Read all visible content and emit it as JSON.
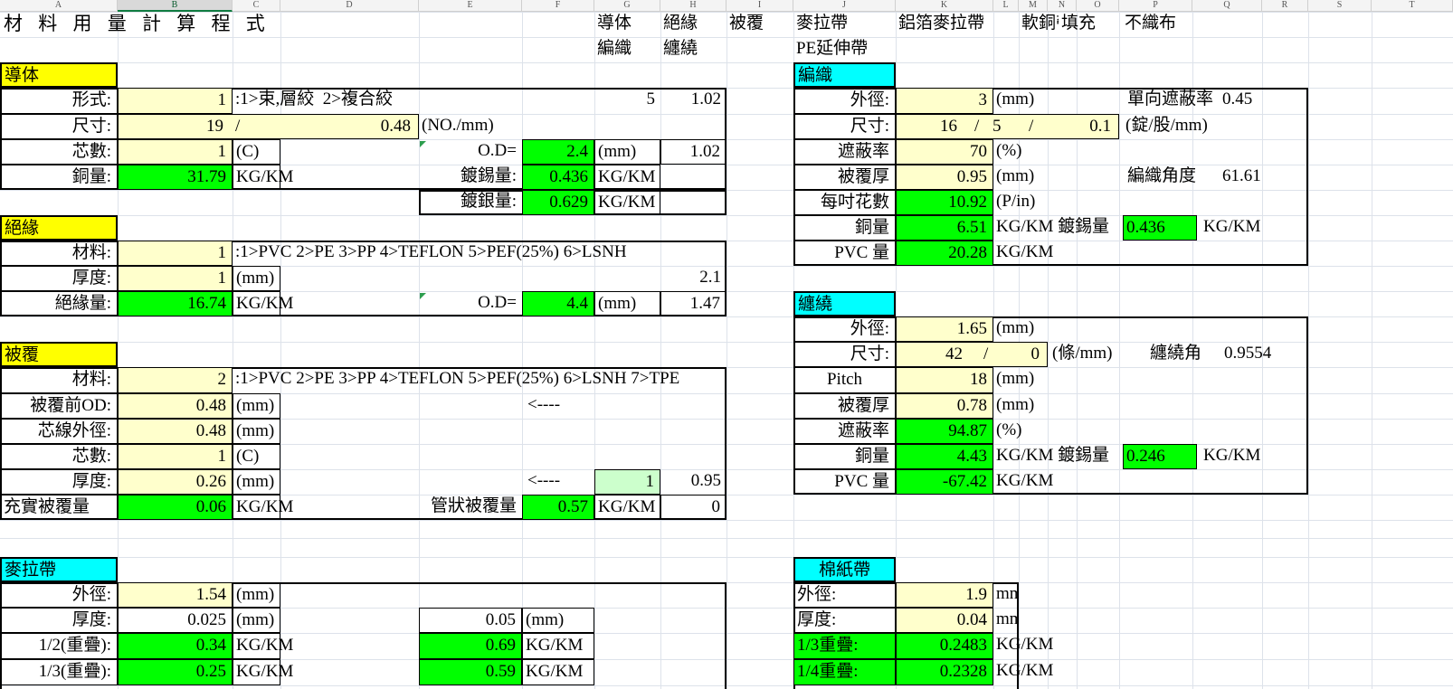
{
  "app": {
    "title": "材 料 用 量 計 算 程 式",
    "column_letters": [
      "A",
      "B",
      "C",
      "D",
      "E",
      "F",
      "G",
      "H",
      "I",
      "J",
      "K",
      "L",
      "M",
      "N",
      "O",
      "P",
      "Q",
      "R",
      "S",
      "T"
    ],
    "selected_column": "B"
  },
  "colors": {
    "section_yellow": "#FFFF00",
    "section_cyan": "#00FFFF",
    "input_yellow": "#FFFFCC",
    "result_green": "#00FF00",
    "pale_green": "#CCFFCC",
    "selected_column_accent": "#107C41"
  },
  "top_row": {
    "conductor": "導体",
    "insulation": "絕緣",
    "jacket": "被覆",
    "mylar": "麥拉帶",
    "al_mylar": "鋁箔麥拉帶",
    "soft_copper": "軟銅帶",
    "filler": "填充",
    "nonwoven": "不織布",
    "braid": "編織",
    "wrap": "纏繞",
    "pe_tape": "PE延伸帶"
  },
  "conductor": {
    "header": "導体",
    "form": {
      "label": "形式:",
      "value": "1",
      "options": ":1>束,層絞  2>複合絞",
      "n1": "5",
      "n2": "1.02"
    },
    "size": {
      "label": "尺寸:",
      "count": "19",
      "sep": "/",
      "dia": "0.48",
      "unit": "(NO./mm)"
    },
    "cores": {
      "label": "芯數:",
      "value": "1",
      "unit": "(C)"
    },
    "od": {
      "label": "O.D=",
      "value": "2.4",
      "unit": "(mm)",
      "ratio": "1.02"
    },
    "copper": {
      "label": "銅量:",
      "value": "31.79",
      "unit": "KG/KM"
    },
    "tin": {
      "label": "鍍錫量:",
      "value": "0.436",
      "unit": "KG/KM"
    },
    "silver": {
      "label": "鍍銀量:",
      "value": "0.629",
      "unit": "KG/KM"
    }
  },
  "insulation": {
    "header": "絕緣",
    "material": {
      "label": "材料:",
      "value": "1",
      "options": ":1>PVC 2>PE 3>PP 4>TEFLON 5>PEF(25%) 6>LSNH"
    },
    "thickness": {
      "label": "厚度:",
      "value": "1",
      "unit": "(mm)",
      "extra": "2.1"
    },
    "amount": {
      "label": "絕緣量:",
      "value": "16.74",
      "unit": "KG/KM"
    },
    "od": {
      "label": "O.D=",
      "value": "4.4",
      "unit": "(mm)",
      "ratio": "1.47"
    }
  },
  "jacket": {
    "header": "被覆",
    "material": {
      "label": "材料:",
      "value": "2",
      "options": ":1>PVC 2>PE 3>PP 4>TEFLON 5>PEF(25%) 6>LSNH 7>TPE"
    },
    "pre_od": {
      "label": "被覆前OD:",
      "value": "0.48",
      "unit": "(mm)",
      "arrow": "<----"
    },
    "core_od": {
      "label": "芯線外徑:",
      "value": "0.48",
      "unit": "(mm)"
    },
    "cores": {
      "label": "芯數:",
      "value": "1",
      "unit": "(C)"
    },
    "thickness": {
      "label": "厚度:",
      "value": "0.26",
      "unit": "(mm)",
      "arrow": "<----",
      "factor": "1",
      "ratio": "0.95"
    },
    "solid": {
      "label": "充實被覆量",
      "value": "0.06",
      "unit": "KG/KM"
    },
    "tubular": {
      "label": "管狀被覆量",
      "value": "0.57",
      "unit": "KG/KM",
      "extra": "0"
    }
  },
  "mylar": {
    "header": "麥拉帶",
    "od": {
      "label": "外徑:",
      "value": "1.54",
      "unit": "(mm)"
    },
    "thickness": {
      "label": "厚度:",
      "value": "0.025",
      "unit": "(mm)",
      "value2": "0.05",
      "unit2": "(mm)"
    },
    "half_overlap": {
      "label": "1/2(重疊):",
      "value": "0.34",
      "unit": "KG/KM",
      "value2": "0.69",
      "unit2": "KG/KM"
    },
    "third_overlap": {
      "label": "1/3(重疊):",
      "value": "0.25",
      "unit": "KG/KM",
      "value2": "0.59",
      "unit2": "KG/KM"
    }
  },
  "braid": {
    "header": "編織",
    "od": {
      "label": "外徑:",
      "value": "3",
      "unit": "(mm)",
      "shield_label": "單向遮蔽率",
      "shield_value": "0.45"
    },
    "size": {
      "label": "尺寸:",
      "p1": "16",
      "s1": "/",
      "p2": "5",
      "s2": "/",
      "p3": "0.1",
      "unit": "(錠/股/mm)"
    },
    "coverage": {
      "label": "遮蔽率",
      "value": "70",
      "unit": "(%)"
    },
    "jacket_thk": {
      "label": "被覆厚",
      "value": "0.95",
      "unit": "(mm)",
      "angle_label": "編織角度",
      "angle_value": "61.61"
    },
    "picks": {
      "label": "每吋花數",
      "value": "10.92",
      "unit": "(P/in)"
    },
    "copper": {
      "label": "銅量",
      "value": "6.51",
      "unit": "KG/KM",
      "tin_label": "鍍錫量",
      "tin_value": "0.436",
      "tin_unit": "KG/KM"
    },
    "pvc": {
      "label": "PVC 量",
      "value": "20.28",
      "unit": "KG/KM"
    }
  },
  "wrap": {
    "header": "纏繞",
    "od": {
      "label": "外徑:",
      "value": "1.65",
      "unit": "(mm)"
    },
    "size": {
      "label": "尺寸:",
      "p1": "42",
      "s1": "/",
      "p2": "0",
      "unit": "(條/mm)",
      "angle_label": "纏繞角",
      "angle_value": "0.9554"
    },
    "pitch": {
      "label": "Pitch",
      "value": "18",
      "unit": "(mm)"
    },
    "jacket_thk": {
      "label": "被覆厚",
      "value": "0.78",
      "unit": "(mm)"
    },
    "coverage": {
      "label": "遮蔽率",
      "value": "94.87",
      "unit": "(%)"
    },
    "copper": {
      "label": "銅量",
      "value": "4.43",
      "unit": "KG/KM",
      "tin_label": "鍍錫量",
      "tin_value": "0.246",
      "tin_unit": "KG/KM"
    },
    "pvc": {
      "label": "PVC 量",
      "value": "-67.42",
      "unit": "KG/KM"
    }
  },
  "cotton": {
    "header": "棉紙帶",
    "od": {
      "label": "外徑:",
      "value": "1.9",
      "unit": "mm"
    },
    "thickness": {
      "label": "厚度:",
      "value": "0.04",
      "unit": "mm"
    },
    "third": {
      "label": "1/3重疊:",
      "value": "0.2483",
      "unit": "KG/KM"
    },
    "quarter": {
      "label": "1/4重疊:",
      "value": "0.2328",
      "unit": "KG/KM"
    }
  }
}
